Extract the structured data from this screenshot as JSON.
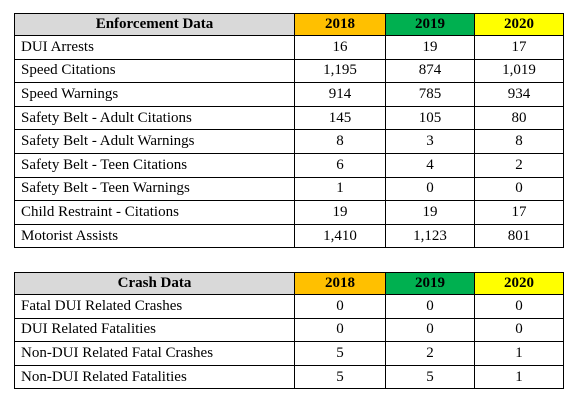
{
  "tables": [
    {
      "header": [
        "Enforcement Data",
        "2018",
        "2019",
        "2020"
      ],
      "rows": [
        [
          "DUI Arrests",
          "16",
          "19",
          "17"
        ],
        [
          "Speed Citations",
          "1,195",
          "874",
          "1,019"
        ],
        [
          "Speed Warnings",
          "914",
          "785",
          "934"
        ],
        [
          "Safety Belt - Adult Citations",
          "145",
          "105",
          "80"
        ],
        [
          "Safety Belt - Adult Warnings",
          "8",
          "3",
          "8"
        ],
        [
          "Safety Belt - Teen Citations",
          "6",
          "4",
          "2"
        ],
        [
          "Safety Belt - Teen Warnings",
          "1",
          "0",
          "0"
        ],
        [
          "Child Restraint - Citations",
          "19",
          "19",
          "17"
        ],
        [
          "Motorist Assists",
          "1,410",
          "1,123",
          "801"
        ]
      ]
    },
    {
      "header": [
        "Crash Data",
        "2018",
        "2019",
        "2020"
      ],
      "rows": [
        [
          "Fatal DUI Related Crashes",
          "0",
          "0",
          "0"
        ],
        [
          "DUI Related Fatalities",
          "0",
          "0",
          "0"
        ],
        [
          "Non-DUI Related Fatal Crashes",
          "5",
          "2",
          "1"
        ],
        [
          "Non-DUI Related Fatalities",
          "5",
          "5",
          "1"
        ]
      ]
    }
  ]
}
